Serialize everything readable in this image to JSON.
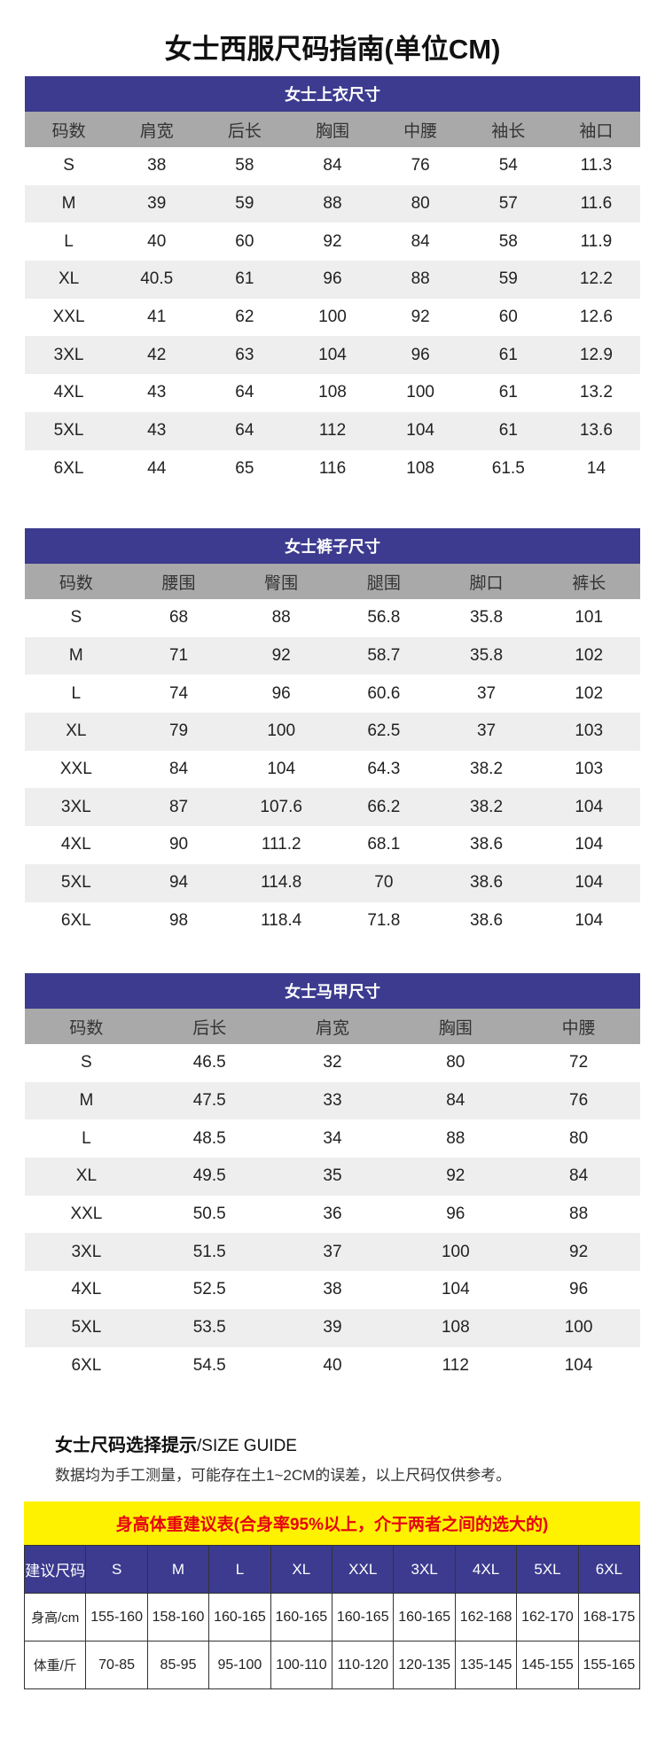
{
  "title": "女士西服尺码指南(单位CM)",
  "colors": {
    "header_bar": "#3c3b8f",
    "column_header": "#a9a9a9",
    "stripe": "#eeeeee",
    "highlight": "#fff200",
    "highlight_text": "#e60012"
  },
  "tables": [
    {
      "title": "女士上衣尺寸",
      "columns": [
        "码数",
        "肩宽",
        "后长",
        "胸围",
        "中腰",
        "袖长",
        "袖口"
      ],
      "rows": [
        [
          "S",
          "38",
          "58",
          "84",
          "76",
          "54",
          "11.3"
        ],
        [
          "M",
          "39",
          "59",
          "88",
          "80",
          "57",
          "11.6"
        ],
        [
          "L",
          "40",
          "60",
          "92",
          "84",
          "58",
          "11.9"
        ],
        [
          "XL",
          "40.5",
          "61",
          "96",
          "88",
          "59",
          "12.2"
        ],
        [
          "XXL",
          "41",
          "62",
          "100",
          "92",
          "60",
          "12.6"
        ],
        [
          "3XL",
          "42",
          "63",
          "104",
          "96",
          "61",
          "12.9"
        ],
        [
          "4XL",
          "43",
          "64",
          "108",
          "100",
          "61",
          "13.2"
        ],
        [
          "5XL",
          "43",
          "64",
          "112",
          "104",
          "61",
          "13.6"
        ],
        [
          "6XL",
          "44",
          "65",
          "116",
          "108",
          "61.5",
          "14"
        ]
      ]
    },
    {
      "title": "女士裤子尺寸",
      "columns": [
        "码数",
        "腰围",
        "臀围",
        "腿围",
        "脚口",
        "裤长"
      ],
      "rows": [
        [
          "S",
          "68",
          "88",
          "56.8",
          "35.8",
          "101"
        ],
        [
          "M",
          "71",
          "92",
          "58.7",
          "35.8",
          "102"
        ],
        [
          "L",
          "74",
          "96",
          "60.6",
          "37",
          "102"
        ],
        [
          "XL",
          "79",
          "100",
          "62.5",
          "37",
          "103"
        ],
        [
          "XXL",
          "84",
          "104",
          "64.3",
          "38.2",
          "103"
        ],
        [
          "3XL",
          "87",
          "107.6",
          "66.2",
          "38.2",
          "104"
        ],
        [
          "4XL",
          "90",
          "111.2",
          "68.1",
          "38.6",
          "104"
        ],
        [
          "5XL",
          "94",
          "114.8",
          "70",
          "38.6",
          "104"
        ],
        [
          "6XL",
          "98",
          "118.4",
          "71.8",
          "38.6",
          "104"
        ]
      ]
    },
    {
      "title": "女士马甲尺寸",
      "columns": [
        "码数",
        "后长",
        "肩宽",
        "胸围",
        "中腰"
      ],
      "rows": [
        [
          "S",
          "46.5",
          "32",
          "80",
          "72"
        ],
        [
          "M",
          "47.5",
          "33",
          "84",
          "76"
        ],
        [
          "L",
          "48.5",
          "34",
          "88",
          "80"
        ],
        [
          "XL",
          "49.5",
          "35",
          "92",
          "84"
        ],
        [
          "XXL",
          "50.5",
          "36",
          "96",
          "88"
        ],
        [
          "3XL",
          "51.5",
          "37",
          "100",
          "92"
        ],
        [
          "4XL",
          "52.5",
          "38",
          "104",
          "96"
        ],
        [
          "5XL",
          "53.5",
          "39",
          "108",
          "100"
        ],
        [
          "6XL",
          "54.5",
          "40",
          "112",
          "104"
        ]
      ]
    }
  ],
  "guide": {
    "title": "女士尺码选择提示",
    "title_en": "/SIZE GUIDE",
    "note": "数据均为手工测量，可能存在土1~2CM的误差，以上尺码仅供参考。"
  },
  "recommend": {
    "title": "身高体重建议表(合身率95%以上，介于两者之间的选大的)",
    "header": [
      "建议尺码",
      "S",
      "M",
      "L",
      "XL",
      "XXL",
      "3XL",
      "4XL",
      "5XL",
      "6XL"
    ],
    "rows": [
      [
        "身高/cm",
        "155-160",
        "158-160",
        "160-165",
        "160-165",
        "160-165",
        "160-165",
        "162-168",
        "162-170",
        "168-175"
      ],
      [
        "体重/斤",
        "70-85",
        "85-95",
        "95-100",
        "100-110",
        "110-120",
        "120-135",
        "135-145",
        "145-155",
        "155-165"
      ]
    ]
  }
}
